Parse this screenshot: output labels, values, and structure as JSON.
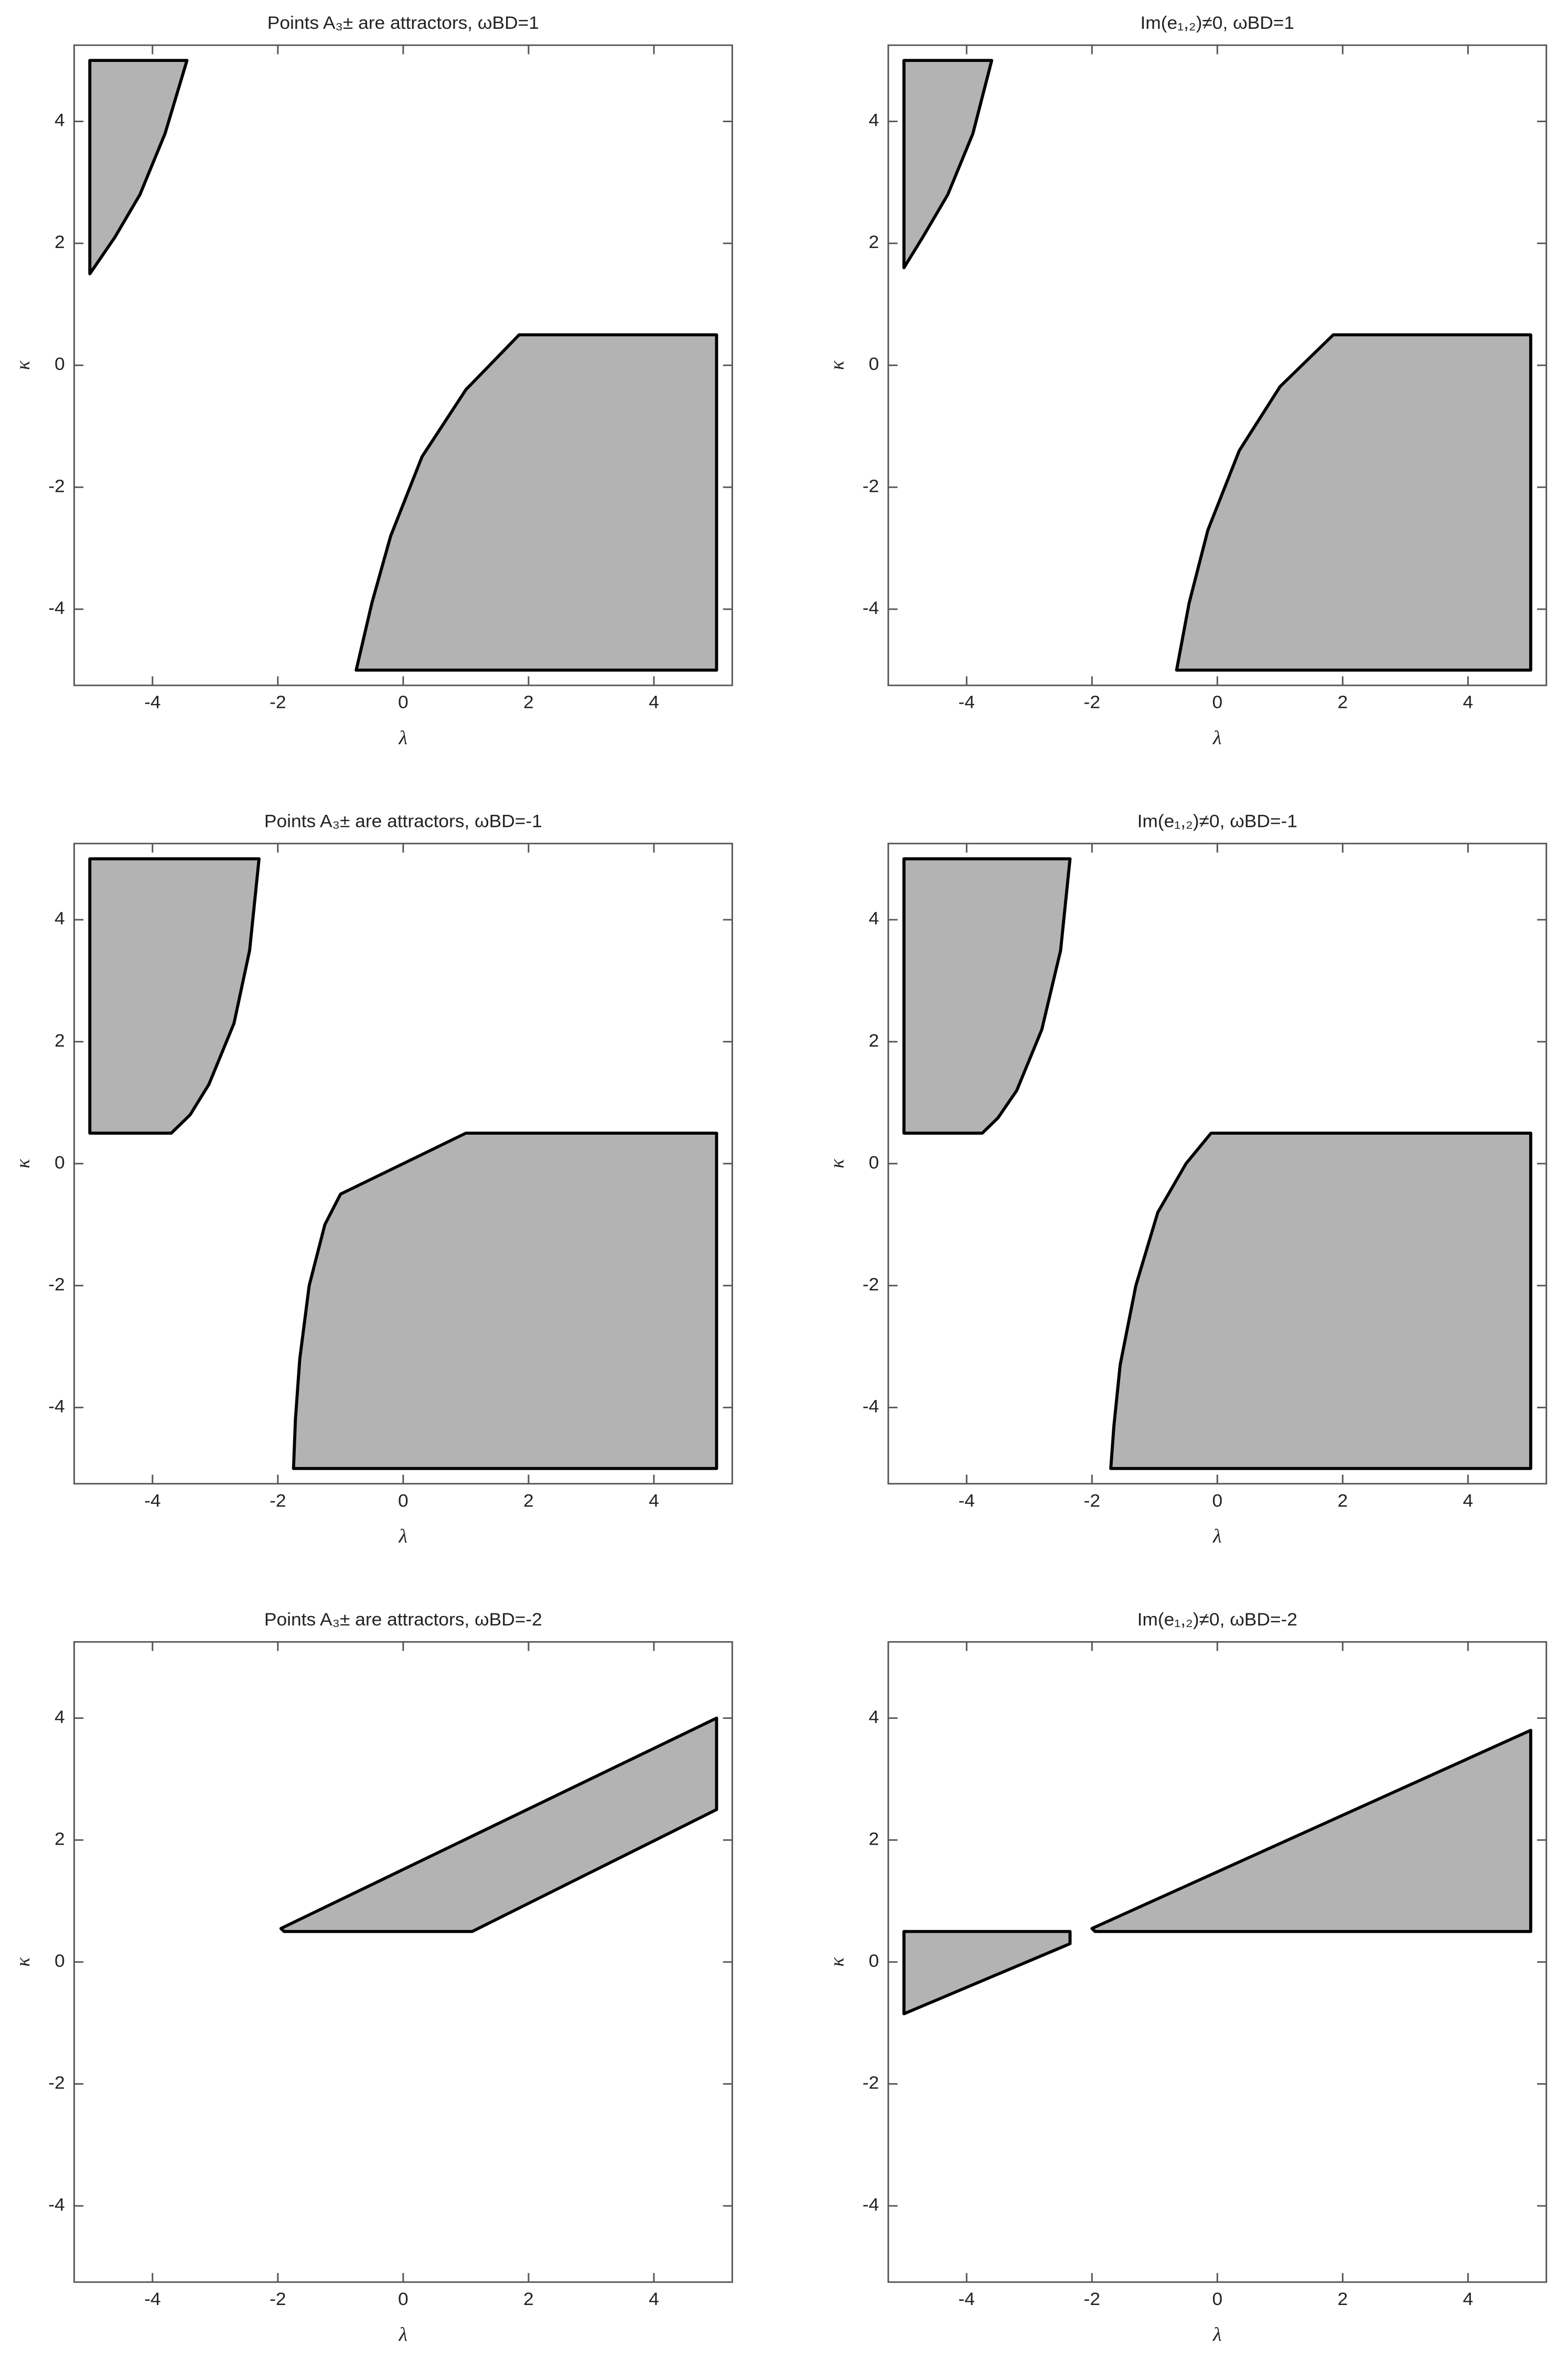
{
  "chart_data": [
    {
      "type": "region",
      "title": "Points A₃± are attractors, ωBD=1",
      "xlabel": "λ",
      "ylabel": "κ",
      "xlim": [
        -5.25,
        5.25
      ],
      "ylim": [
        -5.25,
        5.25
      ],
      "xticks": [
        -4,
        -2,
        0,
        2,
        4
      ],
      "yticks": [
        -4,
        -2,
        0,
        2,
        4
      ],
      "color": "#b3b3b3",
      "regions": [
        {
          "x": [
            -5,
            -3.45,
            -3.8,
            -4.2,
            -4.6,
            -5
          ],
          "y": [
            5,
            5,
            3.8,
            2.8,
            2.1,
            1.5
          ]
        },
        {
          "x": [
            -0.75,
            5,
            5,
            1.85,
            1,
            0.3,
            -0.2,
            -0.5
          ],
          "y": [
            -5,
            -5,
            0.5,
            0.5,
            -0.4,
            -1.5,
            -2.8,
            -3.9
          ]
        }
      ]
    },
    {
      "type": "region",
      "title": "Im(e₁,₂)≠0, ωBD=1",
      "xlabel": "λ",
      "ylabel": "κ",
      "xlim": [
        -5.25,
        5.25
      ],
      "ylim": [
        -5.25,
        5.25
      ],
      "xticks": [
        -4,
        -2,
        0,
        2,
        4
      ],
      "yticks": [
        -4,
        -2,
        0,
        2,
        4
      ],
      "color": "#b3b3b3",
      "regions": [
        {
          "x": [
            -5,
            -3.6,
            -3.9,
            -4.3,
            -4.7,
            -5
          ],
          "y": [
            5,
            5,
            3.8,
            2.8,
            2.1,
            1.6
          ]
        },
        {
          "x": [
            -0.65,
            5,
            5,
            1.85,
            1,
            0.35,
            -0.15,
            -0.45
          ],
          "y": [
            -5,
            -5,
            0.5,
            0.5,
            -0.35,
            -1.4,
            -2.7,
            -3.9
          ]
        }
      ]
    },
    {
      "type": "region",
      "title": "Points A₃± are attractors, ωBD=-1",
      "xlabel": "λ",
      "ylabel": "κ",
      "xlim": [
        -5.25,
        5.25
      ],
      "ylim": [
        -5.25,
        5.25
      ],
      "xticks": [
        -4,
        -2,
        0,
        2,
        4
      ],
      "yticks": [
        -4,
        -2,
        0,
        2,
        4
      ],
      "color": "#b3b3b3",
      "regions": [
        {
          "x": [
            -5,
            -2.3,
            -2.45,
            -2.7,
            -3.1,
            -3.4,
            -3.7,
            -5
          ],
          "y": [
            5,
            5,
            3.5,
            2.3,
            1.3,
            0.8,
            0.5,
            0.5
          ]
        },
        {
          "x": [
            -1.75,
            5,
            5,
            1,
            -1,
            -1.25,
            -1.5,
            -1.65,
            -1.72
          ],
          "y": [
            -5,
            -5,
            0.5,
            0.5,
            -0.5,
            -1,
            -2,
            -3.2,
            -4.2
          ]
        }
      ]
    },
    {
      "type": "region",
      "title": "Im(e₁,₂)≠0, ωBD=-1",
      "xlabel": "λ",
      "ylabel": "κ",
      "xlim": [
        -5.25,
        5.25
      ],
      "ylim": [
        -5.25,
        5.25
      ],
      "xticks": [
        -4,
        -2,
        0,
        2,
        4
      ],
      "yticks": [
        -4,
        -2,
        0,
        2,
        4
      ],
      "color": "#b3b3b3",
      "regions": [
        {
          "x": [
            -5,
            -2.35,
            -2.5,
            -2.8,
            -3.2,
            -3.5,
            -3.75,
            -5
          ],
          "y": [
            5,
            5,
            3.5,
            2.2,
            1.2,
            0.75,
            0.5,
            0.5
          ]
        },
        {
          "x": [
            -1.7,
            5,
            5,
            -0.1,
            -0.5,
            -0.95,
            -1.3,
            -1.55,
            -1.65
          ],
          "y": [
            -5,
            -5,
            0.5,
            0.5,
            0,
            -0.8,
            -2,
            -3.3,
            -4.3
          ]
        }
      ]
    },
    {
      "type": "region",
      "title": "Points A₃± are attractors, ωBD=-2",
      "xlabel": "λ",
      "ylabel": "κ",
      "xlim": [
        -5.25,
        5.25
      ],
      "ylim": [
        -5.25,
        5.25
      ],
      "xticks": [
        -4,
        -2,
        0,
        2,
        4
      ],
      "yticks": [
        -4,
        -2,
        0,
        2,
        4
      ],
      "color": "#b3b3b3",
      "regions": [
        {
          "x": [
            -1.95,
            5,
            5,
            1.1,
            -1.9
          ],
          "y": [
            0.55,
            4,
            2.5,
            0.5,
            0.5
          ]
        }
      ]
    },
    {
      "type": "region",
      "title": "Im(e₁,₂)≠0, ωBD=-2",
      "xlabel": "λ",
      "ylabel": "κ",
      "xlim": [
        -5.25,
        5.25
      ],
      "ylim": [
        -5.25,
        5.25
      ],
      "xticks": [
        -4,
        -2,
        0,
        2,
        4
      ],
      "yticks": [
        -4,
        -2,
        0,
        2,
        4
      ],
      "color": "#b3b3b3",
      "regions": [
        {
          "x": [
            -5,
            -2.35,
            -2.35,
            -5
          ],
          "y": [
            0.5,
            0.5,
            0.3,
            -0.85
          ]
        },
        {
          "x": [
            -2,
            5,
            5,
            -1.95
          ],
          "y": [
            0.55,
            3.8,
            0.5,
            0.5
          ]
        }
      ]
    }
  ]
}
